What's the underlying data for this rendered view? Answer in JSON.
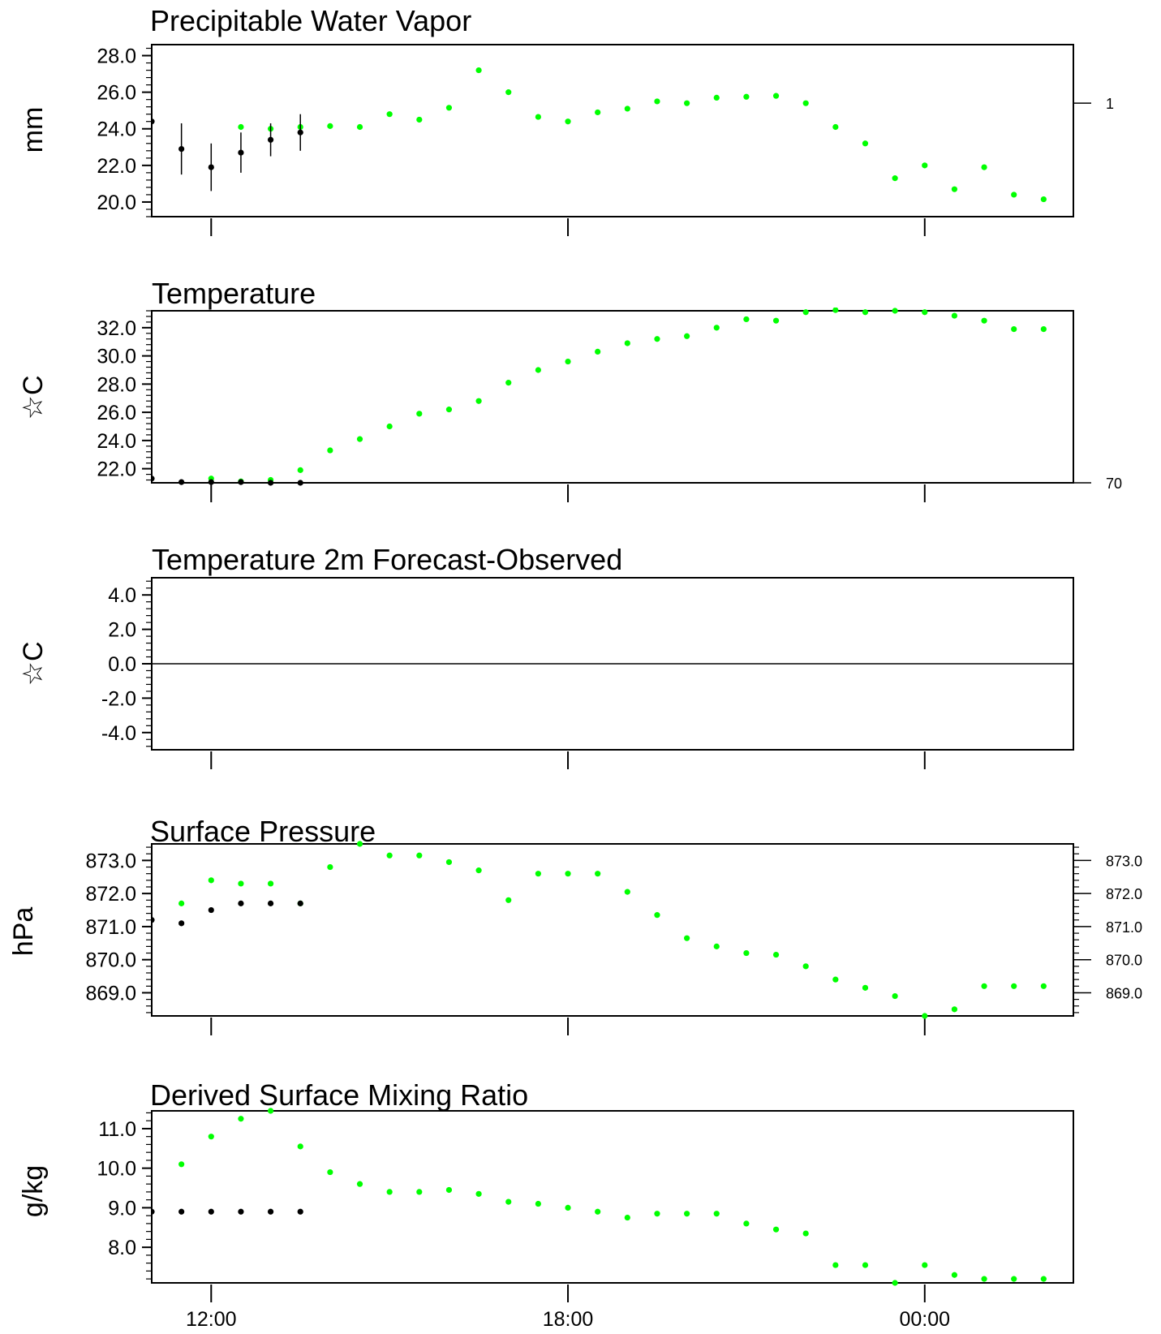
{
  "figure": {
    "x_tick_labels": [
      "12:00",
      "18:00",
      "00:00"
    ],
    "obs_color": "#000000",
    "model_color": "#00ff00"
  },
  "chart_data": [
    {
      "type": "scatter",
      "title": "Precipitable Water Vapor",
      "ylabel": "mm",
      "ylim": [
        19.2,
        28.6
      ],
      "ytick_labels": [
        "28.0",
        "26.0",
        "24.0",
        "22.0",
        "20.0"
      ],
      "ytick_values": [
        28,
        26,
        24,
        22,
        20
      ],
      "right_tick_labels": [
        "1"
      ],
      "right_tick_values": [
        25.4
      ],
      "grid": false,
      "series": [
        {
          "color": "#00ff00",
          "x": [
            12.5,
            13.0,
            13.5,
            14.0,
            14.5,
            15.0,
            15.5,
            16.0,
            16.5,
            17.0,
            17.5,
            18.0,
            18.5,
            19.0,
            19.5,
            20.0,
            20.5,
            21.0,
            21.5,
            22.0,
            22.5,
            23.0,
            23.5,
            24.0,
            24.5,
            25.0
          ],
          "y": [
            24.1,
            24.0,
            24.1,
            24.15,
            24.1,
            24.8,
            24.5,
            25.15,
            27.2,
            26.0,
            24.65,
            24.4,
            24.9,
            25.1,
            25.5,
            25.4,
            25.7,
            25.75,
            25.8,
            25.4,
            24.1,
            23.2,
            21.3,
            22.0,
            20.7,
            21.9
          ]
        },
        {
          "color": "#000000",
          "x": [
            11.0,
            11.5,
            12.0,
            12.5,
            13.0,
            13.5
          ],
          "y": [
            24.4,
            22.9,
            21.9,
            22.7,
            23.4,
            23.8
          ],
          "err": [
            0,
            1.4,
            1.3,
            1.1,
            0.9,
            1.0
          ]
        }
      ],
      "extra_points": {
        "x": [
          25.5,
          26.0
        ],
        "y": [
          20.4,
          20.15
        ]
      }
    },
    {
      "type": "scatter",
      "title": "Temperature",
      "ylabel": "☆C",
      "ylim": [
        21.0,
        33.2
      ],
      "ytick_labels": [
        "32.0",
        "30.0",
        "28.0",
        "26.0",
        "24.0",
        "22.0"
      ],
      "ytick_values": [
        32,
        30,
        28,
        26,
        24,
        22
      ],
      "right_tick_labels": [
        "70"
      ],
      "right_tick_values": [
        21.0
      ],
      "grid": false,
      "series": [
        {
          "color": "#00ff00",
          "x": [
            12.0,
            12.5,
            13.0,
            13.5,
            14.0,
            14.5,
            15.0,
            15.5,
            16.0,
            16.5,
            17.0,
            17.5,
            18.0,
            18.5,
            19.0,
            19.5,
            20.0,
            20.5,
            21.0,
            21.5,
            22.0,
            22.5,
            23.0,
            23.5,
            24.0,
            24.5,
            25.0,
            25.5,
            26.0
          ],
          "y": [
            21.3,
            21.1,
            21.2,
            21.9,
            23.3,
            24.1,
            25.0,
            25.9,
            26.2,
            26.8,
            28.1,
            29.0,
            29.6,
            30.3,
            30.9,
            31.2,
            31.4,
            32.0,
            32.6,
            32.5,
            33.1,
            33.25,
            33.1,
            33.2,
            33.1,
            32.85,
            32.5,
            31.9,
            31.9
          ]
        },
        {
          "color": "#000000",
          "x": [
            11.0,
            11.5,
            12.0,
            12.5,
            13.0,
            13.5
          ],
          "y": [
            21.3,
            21.05,
            21.05,
            21.05,
            21.0,
            21.0
          ]
        }
      ]
    },
    {
      "type": "line",
      "title": "Temperature 2m Forecast-Observed",
      "ylabel": "☆C",
      "ylim": [
        -5.0,
        5.0
      ],
      "ytick_labels": [
        "4.0",
        "2.0",
        "0.0",
        "-2.0",
        "-4.0"
      ],
      "ytick_values": [
        4,
        2,
        0,
        -2,
        -4
      ],
      "grid": false,
      "series": [
        {
          "color": "#000000",
          "x": [
            11.0,
            26.5
          ],
          "y": [
            0,
            0
          ]
        }
      ]
    },
    {
      "type": "scatter",
      "title": "Surface Pressure",
      "ylabel": "hPa",
      "ylim": [
        868.3,
        873.5
      ],
      "ytick_labels": [
        "873.0",
        "872.0",
        "871.0",
        "870.0",
        "869.0"
      ],
      "ytick_values": [
        873,
        872,
        871,
        870,
        869
      ],
      "right_tick_labels": [
        "873.0",
        "872.0",
        "871.0",
        "870.0",
        "869.0"
      ],
      "right_tick_values": [
        873,
        872,
        871,
        870,
        869
      ],
      "grid": false,
      "series": [
        {
          "color": "#00ff00",
          "x": [
            11.5,
            12.0,
            12.5,
            13.0,
            13.5,
            14.0,
            14.5,
            15.0,
            15.5,
            16.0,
            16.5,
            17.0,
            17.5,
            18.0,
            18.5,
            19.0,
            19.5,
            20.0,
            20.5,
            21.0,
            21.5,
            22.0,
            22.5,
            23.0,
            23.5,
            24.0,
            24.5,
            25.0,
            25.5,
            26.0
          ],
          "y": [
            871.7,
            872.4,
            872.3,
            872.3,
            871.7,
            872.8,
            873.5,
            873.15,
            873.15,
            872.95,
            872.7,
            871.8,
            872.6,
            872.6,
            872.6,
            872.05,
            871.35,
            870.65,
            870.4,
            870.2,
            870.15,
            869.8,
            869.4,
            869.15,
            868.9,
            868.3,
            868.5,
            869.2,
            869.2,
            869.2
          ]
        },
        {
          "color": "#000000",
          "x": [
            11.0,
            11.5,
            12.0,
            12.5,
            13.0,
            13.5
          ],
          "y": [
            871.2,
            871.1,
            871.5,
            871.7,
            871.7,
            871.7
          ]
        }
      ]
    },
    {
      "type": "scatter",
      "title": "Derived Surface Mixing Ratio",
      "ylabel": "g/kg",
      "ylim": [
        7.1,
        11.45
      ],
      "ytick_labels": [
        "11.0",
        "10.0",
        "9.0",
        "8.0"
      ],
      "ytick_values": [
        11,
        10,
        9,
        8
      ],
      "grid": false,
      "series": [
        {
          "color": "#00ff00",
          "x": [
            11.5,
            12.0,
            12.5,
            13.0,
            13.5,
            14.0,
            14.5,
            15.0,
            15.5,
            16.0,
            16.5,
            17.0,
            17.5,
            18.0,
            18.5,
            19.0,
            19.5,
            20.0,
            20.5,
            21.0,
            21.5,
            22.0,
            22.5,
            23.0,
            23.5,
            24.0,
            24.5,
            25.0,
            25.5,
            26.0
          ],
          "y": [
            10.1,
            10.8,
            11.25,
            11.45,
            10.55,
            9.9,
            9.6,
            9.4,
            9.4,
            9.45,
            9.35,
            9.15,
            9.1,
            9.0,
            8.9,
            8.75,
            8.85,
            8.85,
            8.85,
            8.6,
            8.45,
            8.35,
            7.55,
            7.55,
            7.1,
            7.55,
            7.3,
            7.2,
            7.2,
            7.2
          ]
        },
        {
          "color": "#000000",
          "x": [
            11.0,
            11.5,
            12.0,
            12.5,
            13.0,
            13.5
          ],
          "y": [
            8.9,
            8.9,
            8.9,
            8.9,
            8.9,
            8.9
          ]
        }
      ]
    }
  ]
}
